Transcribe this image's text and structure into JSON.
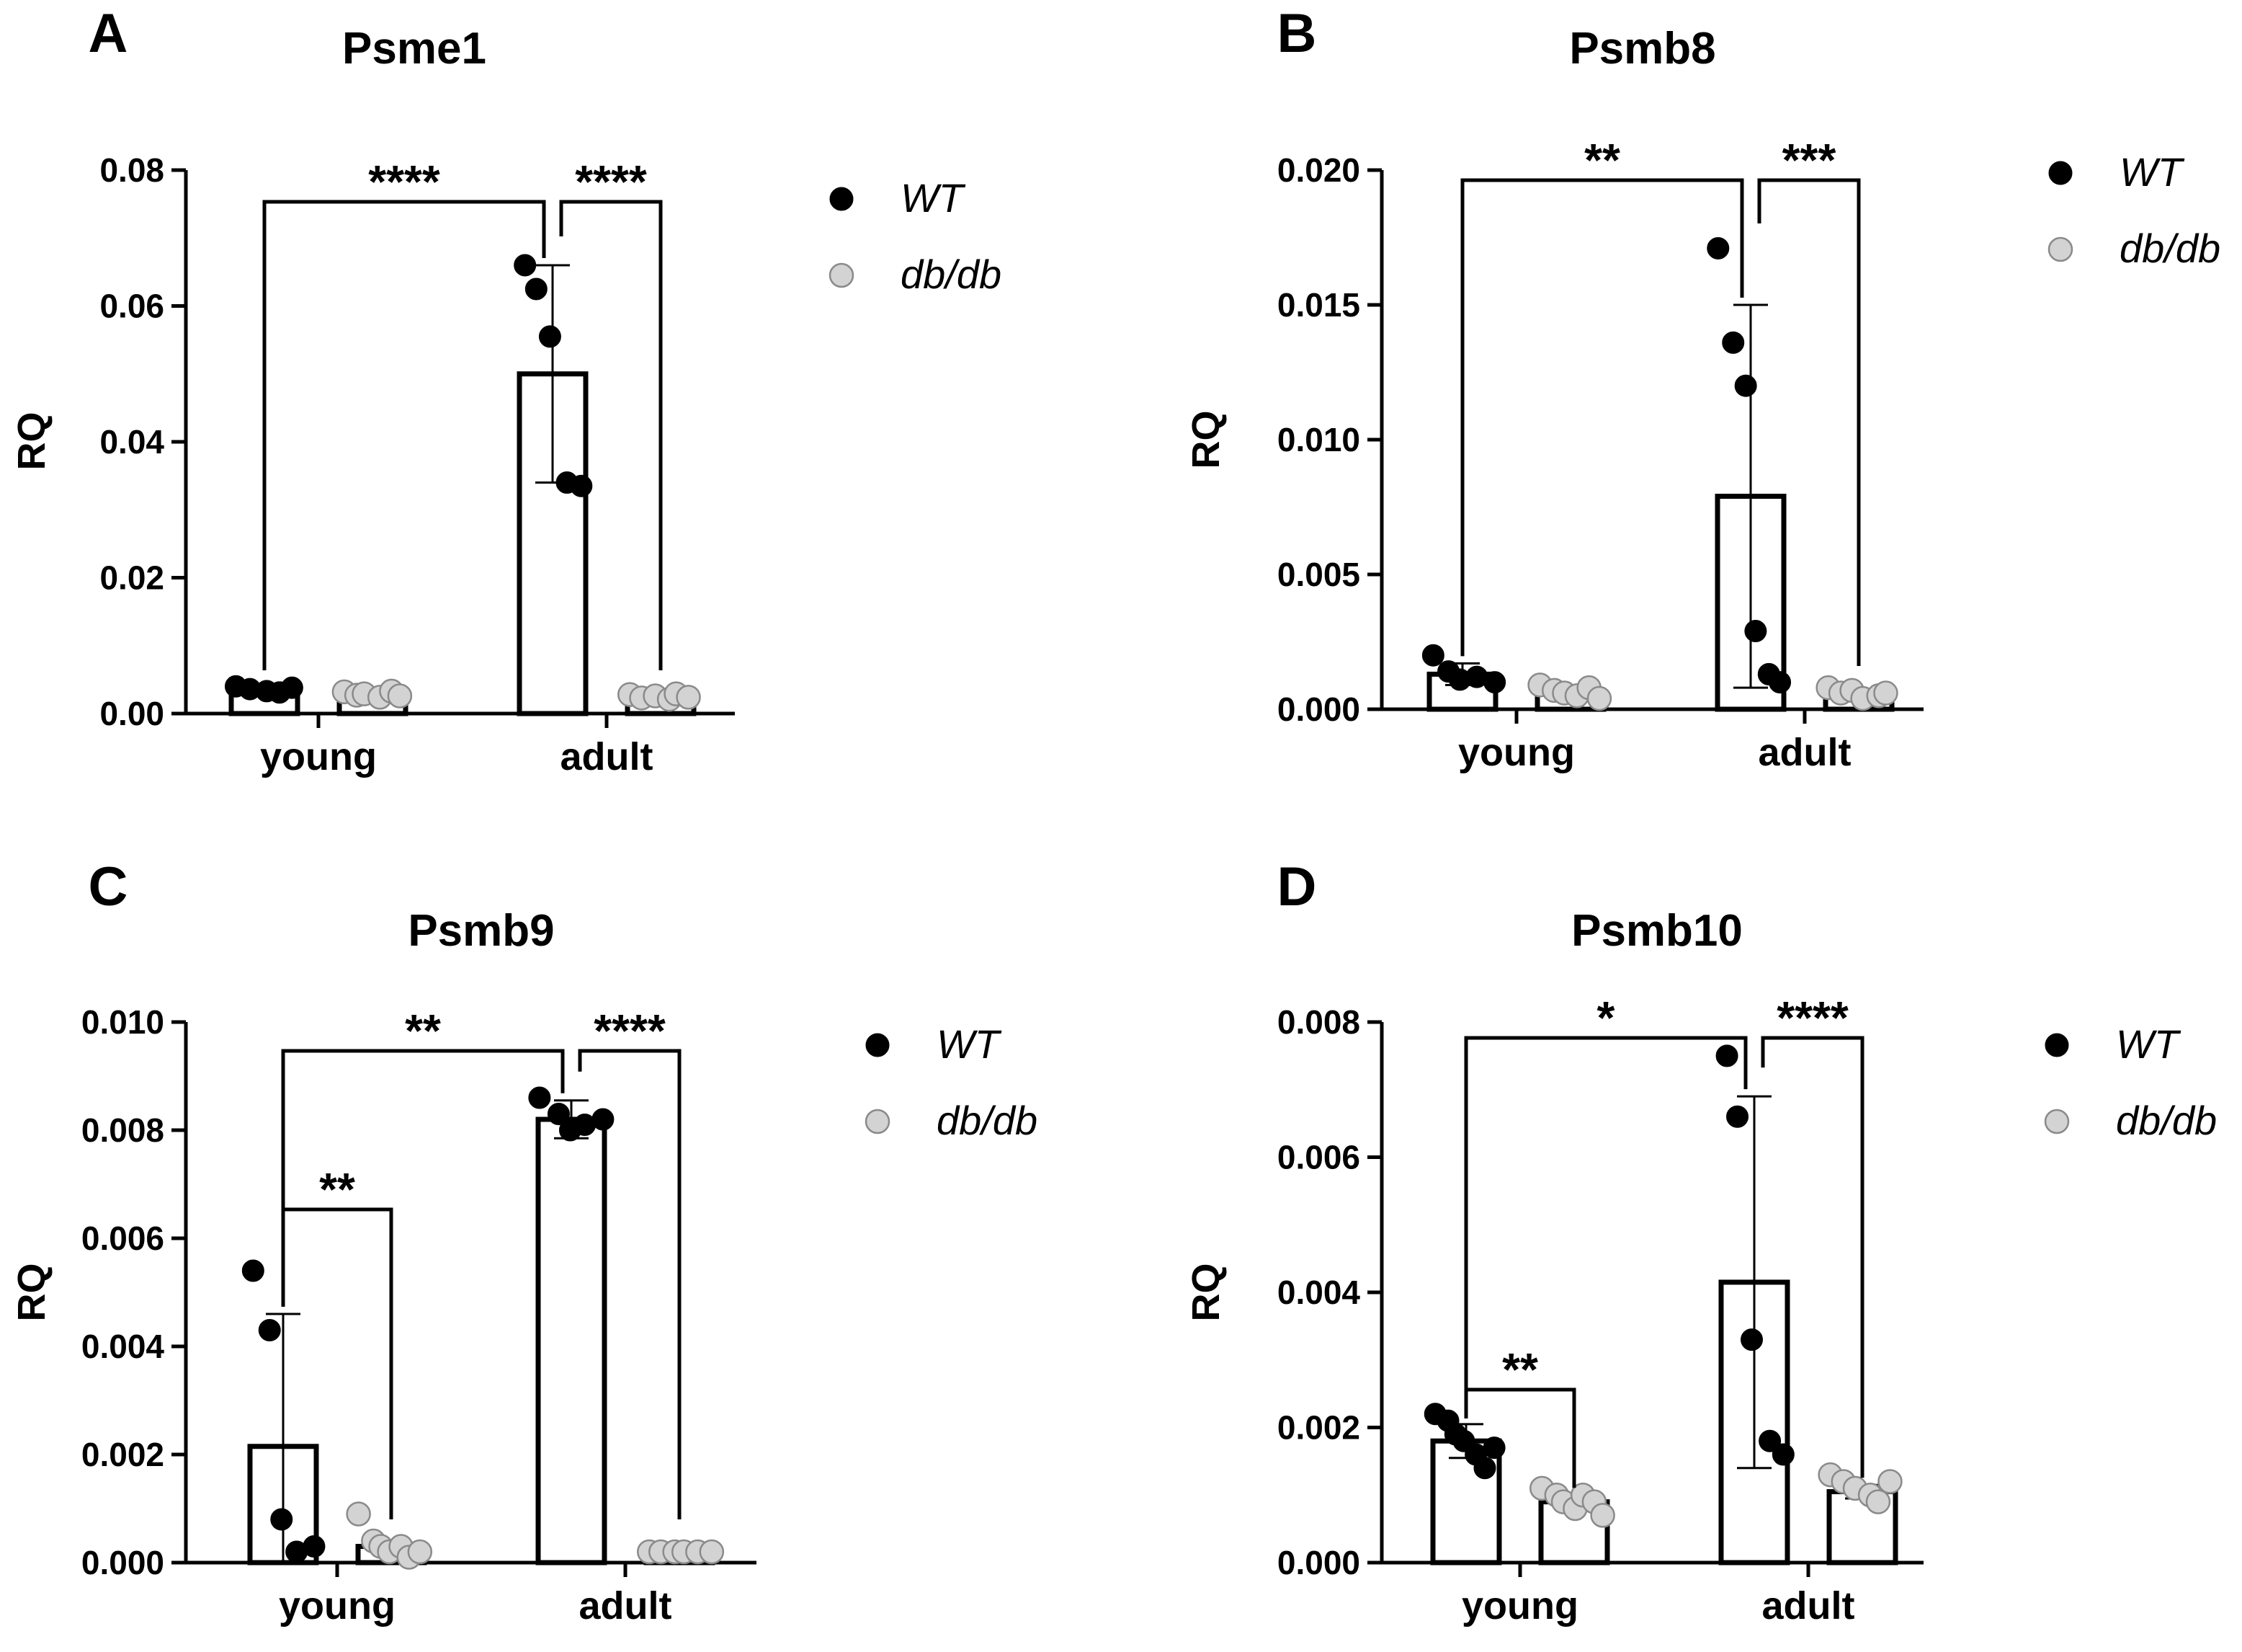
{
  "chart_data": [
    {
      "panel": "A",
      "type": "bar",
      "title": "Psme1",
      "ylabel": "RQ",
      "xlabel": "",
      "ylim": [
        0,
        0.08
      ],
      "yticks": [
        "0.00",
        "0.02",
        "0.04",
        "0.06",
        "0.08"
      ],
      "categories": [
        "young",
        "adult"
      ],
      "series": [
        {
          "name": "WT",
          "color": "#000000",
          "values": [
            0.0035,
            0.05
          ],
          "errors": [
            0.0006,
            0.016
          ],
          "points": [
            [
              0.004,
              0.0036,
              0.0033,
              0.0031,
              0.0038
            ],
            [
              0.066,
              0.0625,
              0.0555,
              0.034,
              0.0335
            ]
          ]
        },
        {
          "name": "db/db",
          "color": "#d3d3d3",
          "values": [
            0.003,
            0.0025
          ],
          "errors": [
            0.0004,
            0.0004
          ],
          "points": [
            [
              0.0032,
              0.0027,
              0.0029,
              0.0024,
              0.0033,
              0.0026
            ],
            [
              0.0028,
              0.0023,
              0.0026,
              0.0021,
              0.0029,
              0.0024
            ]
          ]
        }
      ],
      "comparisons": [
        {
          "from": [
            0,
            0
          ],
          "to": [
            1,
            0
          ],
          "label": "****"
        },
        {
          "from": [
            1,
            0
          ],
          "to": [
            1,
            1
          ],
          "label": "****"
        }
      ],
      "legend": [
        "WT",
        "db/db"
      ]
    },
    {
      "panel": "B",
      "type": "bar",
      "title": "Psmb8",
      "ylabel": "RQ",
      "xlabel": "",
      "ylim": [
        0,
        0.02
      ],
      "yticks": [
        "0.000",
        "0.005",
        "0.010",
        "0.015",
        "0.020"
      ],
      "categories": [
        "young",
        "adult"
      ],
      "series": [
        {
          "name": "WT",
          "color": "#000000",
          "values": [
            0.0013,
            0.0079
          ],
          "errors": [
            0.0004,
            0.0071
          ],
          "points": [
            [
              0.002,
              0.0014,
              0.0011,
              0.0012,
              0.001
            ],
            [
              0.0171,
              0.0136,
              0.012,
              0.0029,
              0.0013,
              0.001
            ]
          ]
        },
        {
          "name": "db/db",
          "color": "#d3d3d3",
          "values": [
            0.0006,
            0.0006
          ],
          "errors": [
            0.0001,
            0.0001
          ],
          "points": [
            [
              0.0009,
              0.0007,
              0.0006,
              0.0005,
              0.0008,
              0.0004
            ],
            [
              0.0008,
              0.0006,
              0.0007,
              0.0004,
              0.0005,
              0.0006
            ]
          ]
        }
      ],
      "comparisons": [
        {
          "from": [
            0,
            0
          ],
          "to": [
            1,
            0
          ],
          "label": "**"
        },
        {
          "from": [
            1,
            0
          ],
          "to": [
            1,
            1
          ],
          "label": "***"
        }
      ],
      "legend": [
        "WT",
        "db/db"
      ]
    },
    {
      "panel": "C",
      "type": "bar",
      "title": "Psmb9",
      "ylabel": "RQ",
      "xlabel": "",
      "ylim": [
        0,
        0.01
      ],
      "yticks": [
        "0.000",
        "0.002",
        "0.004",
        "0.006",
        "0.008",
        "0.010"
      ],
      "categories": [
        "young",
        "adult"
      ],
      "series": [
        {
          "name": "WT",
          "color": "#000000",
          "values": [
            0.00215,
            0.0082
          ],
          "errors": [
            0.00245,
            0.00035
          ],
          "points": [
            [
              0.0054,
              0.0043,
              0.0008,
              0.0002,
              0.0003
            ],
            [
              0.0086,
              0.0083,
              0.008,
              0.0081,
              0.0082
            ]
          ]
        },
        {
          "name": "db/db",
          "color": "#d3d3d3",
          "values": [
            0.0003,
            0.0002
          ],
          "errors": [
            0.0001,
            5e-05
          ],
          "points": [
            [
              0.0009,
              0.0004,
              0.0003,
              0.0002,
              0.0003,
              0.0001,
              0.0002
            ],
            [
              0.0002,
              0.0002,
              0.0002,
              0.0002,
              0.0002,
              0.0002
            ]
          ]
        }
      ],
      "comparisons": [
        {
          "from": [
            0,
            0
          ],
          "to": [
            0,
            1
          ],
          "label": "**"
        },
        {
          "from": [
            0,
            0
          ],
          "to": [
            1,
            0
          ],
          "label": "**"
        },
        {
          "from": [
            1,
            0
          ],
          "to": [
            1,
            1
          ],
          "label": "****"
        }
      ],
      "legend": [
        "WT",
        "db/db"
      ]
    },
    {
      "panel": "D",
      "type": "bar",
      "title": "Psmb10",
      "ylabel": "RQ",
      "xlabel": "",
      "ylim": [
        0,
        0.008
      ],
      "yticks": [
        "0.000",
        "0.002",
        "0.004",
        "0.006",
        "0.008"
      ],
      "categories": [
        "young",
        "adult"
      ],
      "series": [
        {
          "name": "WT",
          "color": "#000000",
          "values": [
            0.0018,
            0.00415
          ],
          "errors": [
            0.00025,
            0.00275
          ],
          "points": [
            [
              0.0022,
              0.0021,
              0.0019,
              0.0018,
              0.0016,
              0.0014,
              0.0017
            ],
            [
              0.0075,
              0.0066,
              0.0033,
              0.0018,
              0.0016
            ]
          ]
        },
        {
          "name": "db/db",
          "color": "#d3d3d3",
          "values": [
            0.0009,
            0.00105
          ],
          "errors": [
            0.0001,
            0.0001
          ],
          "points": [
            [
              0.0011,
              0.001,
              0.0009,
              0.0008,
              0.001,
              0.0009,
              0.0007
            ],
            [
              0.0013,
              0.0012,
              0.0011,
              0.001,
              0.0009,
              0.0012
            ]
          ]
        }
      ],
      "comparisons": [
        {
          "from": [
            0,
            0
          ],
          "to": [
            0,
            1
          ],
          "label": "**"
        },
        {
          "from": [
            0,
            0
          ],
          "to": [
            1,
            0
          ],
          "label": "*"
        },
        {
          "from": [
            1,
            0
          ],
          "to": [
            1,
            1
          ],
          "label": "****"
        }
      ],
      "legend": [
        "WT",
        "db/db"
      ]
    }
  ]
}
